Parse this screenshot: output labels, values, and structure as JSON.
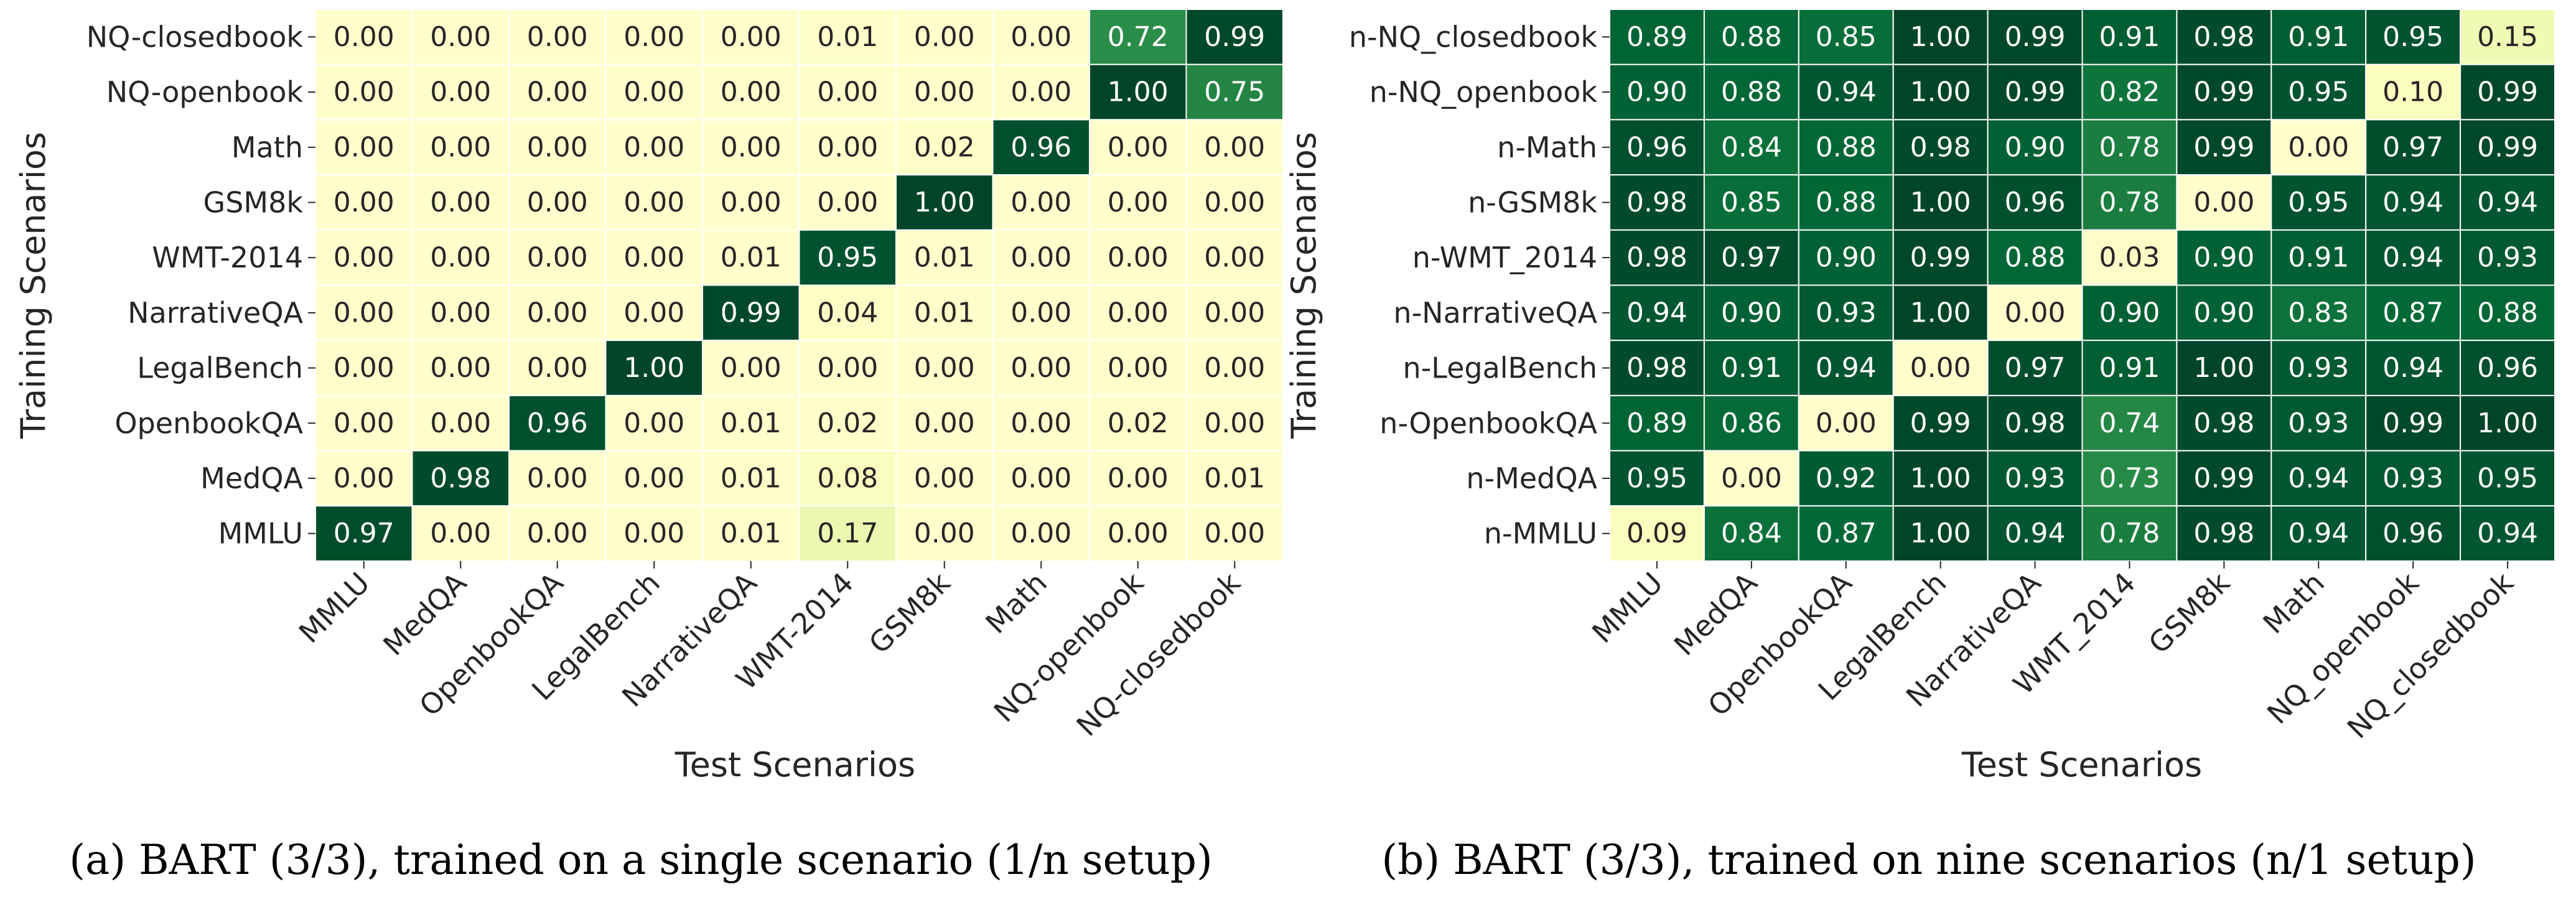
{
  "chart_data": [
    {
      "type": "heatmap",
      "xlabel": "Test Scenarios",
      "ylabel": "Training Scenarios",
      "caption": "(a) BART (3/3), trained on a single scenario (1/n setup)",
      "x_categories": [
        "MMLU",
        "MedQA",
        "OpenbookQA",
        "LegalBench",
        "NarrativeQA",
        "WMT-2014",
        "GSM8k",
        "Math",
        "NQ-openbook",
        "NQ-closedbook"
      ],
      "y_categories": [
        "NQ-closedbook",
        "NQ-openbook",
        "Math",
        "GSM8k",
        "WMT-2014",
        "NarrativeQA",
        "LegalBench",
        "OpenbookQA",
        "MedQA",
        "MMLU"
      ],
      "values": [
        [
          0.0,
          0.0,
          0.0,
          0.0,
          0.0,
          0.01,
          0.0,
          0.0,
          0.72,
          0.99
        ],
        [
          0.0,
          0.0,
          0.0,
          0.0,
          0.0,
          0.0,
          0.0,
          0.0,
          1.0,
          0.75
        ],
        [
          0.0,
          0.0,
          0.0,
          0.0,
          0.0,
          0.0,
          0.02,
          0.96,
          0.0,
          0.0
        ],
        [
          0.0,
          0.0,
          0.0,
          0.0,
          0.0,
          0.0,
          1.0,
          0.0,
          0.0,
          0.0
        ],
        [
          0.0,
          0.0,
          0.0,
          0.0,
          0.01,
          0.95,
          0.01,
          0.0,
          0.0,
          0.0
        ],
        [
          0.0,
          0.0,
          0.0,
          0.0,
          0.99,
          0.04,
          0.01,
          0.0,
          0.0,
          0.0
        ],
        [
          0.0,
          0.0,
          0.0,
          1.0,
          0.0,
          0.0,
          0.0,
          0.0,
          0.0,
          0.0
        ],
        [
          0.0,
          0.0,
          0.96,
          0.0,
          0.01,
          0.02,
          0.0,
          0.0,
          0.02,
          0.0
        ],
        [
          0.0,
          0.98,
          0.0,
          0.0,
          0.01,
          0.08,
          0.0,
          0.0,
          0.0,
          0.01
        ],
        [
          0.97,
          0.0,
          0.0,
          0.0,
          0.01,
          0.17,
          0.0,
          0.0,
          0.0,
          0.0
        ]
      ],
      "value_range": [
        0,
        1
      ],
      "colormap": "YlGn"
    },
    {
      "type": "heatmap",
      "xlabel": "Test Scenarios",
      "ylabel": "Training Scenarios",
      "caption": "(b) BART (3/3), trained on nine scenarios (n/1 setup)",
      "x_categories": [
        "MMLU",
        "MedQA",
        "OpenbookQA",
        "LegalBench",
        "NarrativeQA",
        "WMT_2014",
        "GSM8k",
        "Math",
        "NQ_openbook",
        "NQ_closedbook"
      ],
      "y_categories": [
        "n-NQ_closedbook",
        "n-NQ_openbook",
        "n-Math",
        "n-GSM8k",
        "n-WMT_2014",
        "n-NarrativeQA",
        "n-LegalBench",
        "n-OpenbookQA",
        "n-MedQA",
        "n-MMLU"
      ],
      "values": [
        [
          0.89,
          0.88,
          0.85,
          1.0,
          0.99,
          0.91,
          0.98,
          0.91,
          0.95,
          0.15
        ],
        [
          0.9,
          0.88,
          0.94,
          1.0,
          0.99,
          0.82,
          0.99,
          0.95,
          0.1,
          0.99
        ],
        [
          0.96,
          0.84,
          0.88,
          0.98,
          0.9,
          0.78,
          0.99,
          0.0,
          0.97,
          0.99
        ],
        [
          0.98,
          0.85,
          0.88,
          1.0,
          0.96,
          0.78,
          0.0,
          0.95,
          0.94,
          0.94
        ],
        [
          0.98,
          0.97,
          0.9,
          0.99,
          0.88,
          0.03,
          0.9,
          0.91,
          0.94,
          0.93
        ],
        [
          0.94,
          0.9,
          0.93,
          1.0,
          0.0,
          0.9,
          0.9,
          0.83,
          0.87,
          0.88
        ],
        [
          0.98,
          0.91,
          0.94,
          0.0,
          0.97,
          0.91,
          1.0,
          0.93,
          0.94,
          0.96
        ],
        [
          0.89,
          0.86,
          0.0,
          0.99,
          0.98,
          0.74,
          0.98,
          0.93,
          0.99,
          1.0
        ],
        [
          0.95,
          0.0,
          0.92,
          1.0,
          0.93,
          0.73,
          0.99,
          0.94,
          0.93,
          0.95
        ],
        [
          0.09,
          0.84,
          0.87,
          1.0,
          0.94,
          0.78,
          0.98,
          0.94,
          0.96,
          0.94
        ]
      ],
      "value_range": [
        0,
        1
      ],
      "colormap": "YlGn"
    }
  ]
}
